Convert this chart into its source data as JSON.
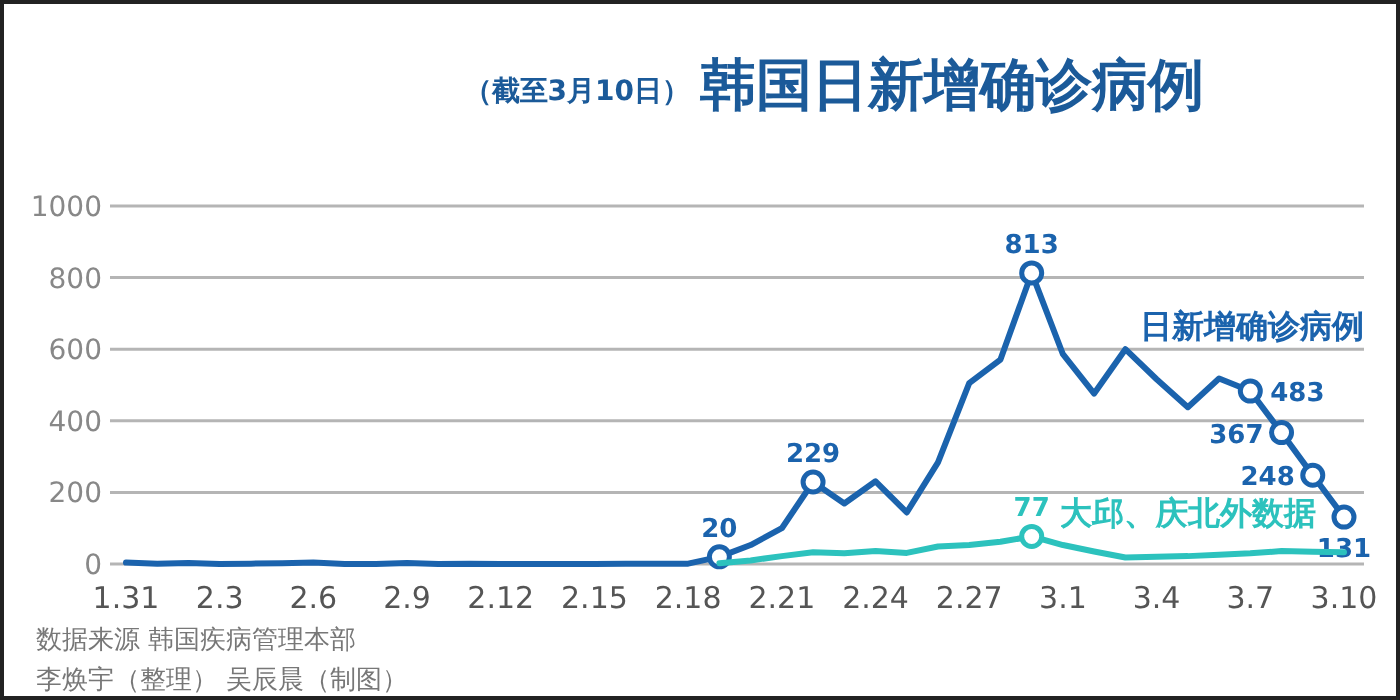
{
  "chart_data": {
    "type": "line",
    "title": "韩国日新增确诊病例",
    "subtitle": "（截至3月10日）",
    "categories": [
      "1.31",
      null,
      null,
      "2.3",
      null,
      null,
      "2.6",
      null,
      null,
      "2.9",
      null,
      null,
      "2.12",
      null,
      null,
      "2.15",
      null,
      null,
      "2.18",
      null,
      null,
      "2.21",
      null,
      null,
      "2.24",
      null,
      null,
      "2.27",
      null,
      null,
      "3.1",
      null,
      null,
      "3.4",
      null,
      null,
      "3.7",
      null,
      null,
      "3.10"
    ],
    "series": [
      {
        "name": "日新增确诊病例",
        "color": "#1b63ad",
        "values": [
          4,
          1,
          3,
          0,
          1,
          2,
          4,
          0,
          0,
          3,
          0,
          1,
          0,
          0,
          0,
          0,
          1,
          1,
          1,
          20,
          53,
          100,
          229,
          169,
          231,
          144,
          284,
          505,
          571,
          813,
          586,
          476,
          600,
          516,
          438,
          518,
          483,
          367,
          248,
          131
        ],
        "value_labels": [
          null,
          null,
          null,
          null,
          null,
          null,
          null,
          null,
          null,
          null,
          null,
          null,
          null,
          null,
          null,
          null,
          null,
          null,
          null,
          "20",
          null,
          null,
          "229",
          null,
          null,
          null,
          null,
          null,
          null,
          "813",
          null,
          null,
          null,
          null,
          null,
          null,
          "483",
          "367",
          "248",
          "131"
        ]
      },
      {
        "name": "大邱、庆北外数据",
        "color": "#2cc2bd",
        "values": [
          null,
          null,
          null,
          null,
          null,
          null,
          null,
          null,
          null,
          null,
          null,
          null,
          null,
          null,
          null,
          null,
          null,
          null,
          null,
          2,
          10,
          22,
          33,
          30,
          36,
          31,
          49,
          53,
          62,
          77,
          53,
          35,
          18,
          20,
          22,
          26,
          30,
          36,
          34,
          33
        ],
        "value_labels": [
          null,
          null,
          null,
          null,
          null,
          null,
          null,
          null,
          null,
          null,
          null,
          null,
          null,
          null,
          null,
          null,
          null,
          null,
          null,
          null,
          null,
          null,
          null,
          null,
          null,
          null,
          null,
          null,
          null,
          "77",
          null,
          null,
          null,
          null,
          null,
          null,
          null,
          null,
          null,
          null
        ]
      }
    ],
    "ylim": [
      0,
      1000
    ],
    "yticks": [
      0,
      200,
      400,
      600,
      800,
      1000
    ],
    "grid": "y",
    "line_style": "solid",
    "annotations": [
      "数据来源 韩国疾病管理本部",
      "李焕宇（整理） 吴辰晨（制图）"
    ]
  }
}
